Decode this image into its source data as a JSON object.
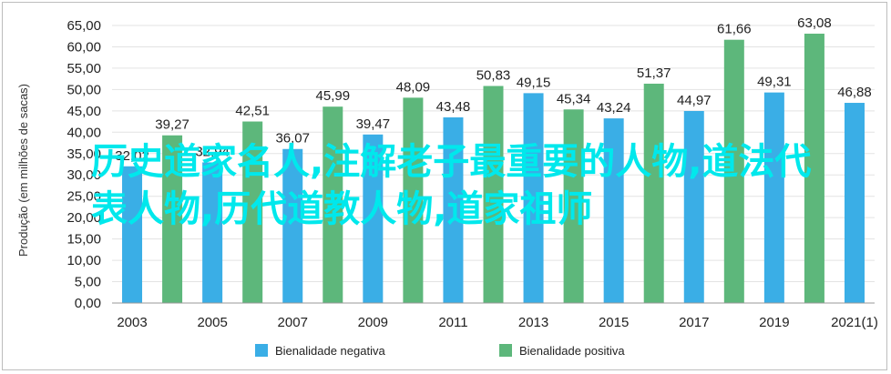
{
  "chart_data": {
    "type": "bar",
    "categories": [
      "2003",
      "2004",
      "2005",
      "2006",
      "2007",
      "2008",
      "2009",
      "2010",
      "2011",
      "2012",
      "2013",
      "2014",
      "2015",
      "2016",
      "2017",
      "2018",
      "2019",
      "2020",
      "2021(1)"
    ],
    "x_tick_labels": [
      "2003",
      "2005",
      "2007",
      "2009",
      "2011",
      "2013",
      "2015",
      "2017",
      "2019",
      "2021(1)"
    ],
    "series": [
      {
        "name": "Bienalidade negativa",
        "color": "#3aaee6",
        "values": [
          32.02,
          null,
          32.94,
          null,
          36.07,
          null,
          39.47,
          null,
          43.48,
          null,
          49.15,
          null,
          43.24,
          null,
          44.97,
          null,
          49.31,
          null,
          46.88
        ]
      },
      {
        "name": "Bienalidade positiva",
        "color": "#5db77b",
        "values": [
          null,
          39.27,
          null,
          42.51,
          null,
          45.99,
          null,
          48.09,
          null,
          50.83,
          null,
          45.34,
          null,
          51.37,
          null,
          61.66,
          null,
          63.08,
          null
        ]
      }
    ],
    "value_labels": {
      "2003": "32,02",
      "2004": "39,27",
      "2005": "32,94",
      "2006": "42,51",
      "2007": "36,07",
      "2008": "45,99",
      "2009": "39,47",
      "2010": "48,09",
      "2011": "43,48",
      "2012": "50,83",
      "2013": "49,15",
      "2014": "45,34",
      "2015": "43,24",
      "2016": "51,37",
      "2017": "44,97",
      "2018": "61,66",
      "2019": "49,31",
      "2020": "63,08",
      "2021(1)": "46,88"
    },
    "ylabel": "Produção (em milhões de sacas)",
    "ylim": [
      0,
      65
    ],
    "y_ticks": [
      "0,00",
      "5,00",
      "10,00",
      "15,00",
      "20,00",
      "25,00",
      "30,00",
      "35,00",
      "40,00",
      "45,00",
      "50,00",
      "55,00",
      "60,00",
      "65,00"
    ],
    "grid": true,
    "legend_position": "bottom"
  },
  "overlay_text": "历史道家名人,注解老子最重要的人物,道法代表人物,历代道教人物,道家祖师"
}
